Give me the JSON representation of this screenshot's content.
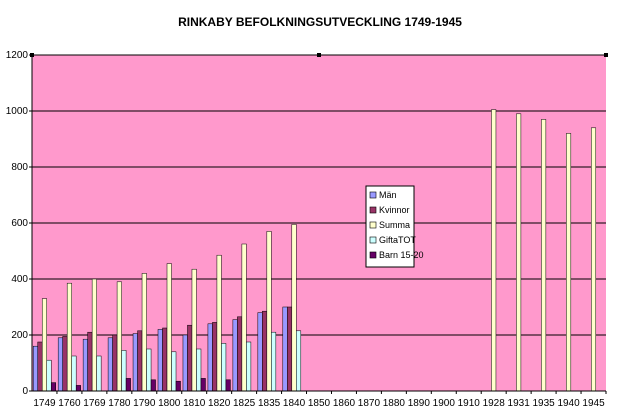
{
  "chart_data": {
    "type": "bar",
    "title": "RINKABY BEFOLKNINGSUTVECKLING 1749-1945",
    "xlabel": "",
    "ylabel": "",
    "ylim": [
      0,
      1200
    ],
    "yticks": [
      0,
      200,
      400,
      600,
      800,
      1000,
      1200
    ],
    "grid": true,
    "legend_position": "center",
    "categories": [
      "1749",
      "1760",
      "1769",
      "1780",
      "1790",
      "1800",
      "1810",
      "1820",
      "1825",
      "1835",
      "1840",
      "1850",
      "1860",
      "1870",
      "1880",
      "1890",
      "1900",
      "1910",
      "1928",
      "1931",
      "1935",
      "1940",
      "1945"
    ],
    "series": [
      {
        "name": "Män",
        "color": "#9999ff",
        "values": [
          160,
          190,
          185,
          190,
          205,
          220,
          200,
          240,
          255,
          280,
          300,
          null,
          null,
          null,
          null,
          null,
          null,
          null,
          null,
          null,
          null,
          null,
          null
        ]
      },
      {
        "name": "Kvinnor",
        "color": "#993366",
        "values": [
          175,
          195,
          210,
          200,
          215,
          225,
          235,
          245,
          265,
          285,
          300,
          null,
          null,
          null,
          null,
          null,
          null,
          null,
          null,
          null,
          null,
          null,
          null
        ]
      },
      {
        "name": "Summa",
        "color": "#ffffcc",
        "values": [
          330,
          385,
          400,
          390,
          420,
          455,
          435,
          485,
          525,
          570,
          595,
          null,
          null,
          null,
          null,
          null,
          null,
          null,
          1005,
          990,
          970,
          920,
          940
        ]
      },
      {
        "name": "GiftaTOT",
        "color": "#ccffff",
        "values": [
          110,
          125,
          125,
          145,
          150,
          140,
          150,
          170,
          175,
          210,
          215,
          null,
          null,
          null,
          null,
          null,
          null,
          null,
          null,
          null,
          null,
          null,
          null
        ]
      },
      {
        "name": "Barn 15-20",
        "color": "#660066",
        "values": [
          30,
          20,
          null,
          45,
          40,
          35,
          45,
          40,
          null,
          null,
          null,
          null,
          null,
          null,
          null,
          null,
          null,
          null,
          null,
          null,
          null,
          null,
          null
        ]
      }
    ],
    "colors": {
      "plot_background": "#ff99cc",
      "gridline": "#000000"
    }
  }
}
